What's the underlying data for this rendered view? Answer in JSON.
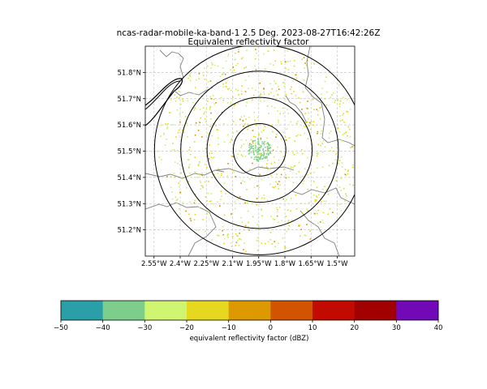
{
  "title_line1": "ncas-radar-mobile-ka-band-1 2.5 Deg. 2023-08-27T16:42:26Z",
  "title_line2": "Equivalent reflectivity factor",
  "chart_data": {
    "type": "scatter",
    "title": "ncas-radar-mobile-ka-band-1 2.5 Deg. 2023-08-27T16:42:26Z",
    "subtitle": "Equivalent reflectivity factor",
    "xlabel": "",
    "ylabel": "",
    "xlim": [
      -2.6,
      -1.4
    ],
    "ylim": [
      51.1,
      51.9
    ],
    "grid": true,
    "x_ticks": [
      -2.55,
      -2.4,
      -2.25,
      -2.1,
      -1.95,
      -1.8,
      -1.65,
      -1.5
    ],
    "x_tick_labels": [
      "2.55°W",
      "2.4°W",
      "2.25°W",
      "2.1°W",
      "1.95°W",
      "1.8°W",
      "1.65°W",
      "1.5°W"
    ],
    "y_ticks": [
      51.2,
      51.3,
      51.4,
      51.5,
      51.6,
      51.7,
      51.8
    ],
    "y_tick_labels": [
      "51.2°N",
      "51.3°N",
      "51.4°N",
      "51.5°N",
      "51.6°N",
      "51.7°N",
      "51.8°N"
    ],
    "radar_center": {
      "lon": -1.945,
      "lat": 51.505
    },
    "range_rings_deg_lat": [
      0.1,
      0.2,
      0.3,
      0.4
    ],
    "series": [
      {
        "color": "#c8f070",
        "lat_spread": 0.4,
        "count": 420
      },
      {
        "color": "#e6d81a",
        "lat_spread": 0.4,
        "count": 300
      },
      {
        "color": "#d98c00",
        "lat_spread": 0.4,
        "count": 90
      },
      {
        "color": "#7fcf8a",
        "lat_spread": 0.045,
        "count": 130
      }
    ],
    "colorbar": {
      "label": "equivalent reflectivity factor (dBZ)",
      "ticks": [
        -50,
        -40,
        -30,
        -20,
        -10,
        0,
        10,
        20,
        30,
        40
      ],
      "tick_labels": [
        "−50",
        "−40",
        "−30",
        "−20",
        "−10",
        "0",
        "10",
        "20",
        "30",
        "40"
      ],
      "colors": [
        "#2a9fa8",
        "#7dce8b",
        "#d0f570",
        "#e6d81e",
        "#dc9a00",
        "#d35400",
        "#c20a00",
        "#a00000",
        "#7209b7"
      ]
    }
  }
}
